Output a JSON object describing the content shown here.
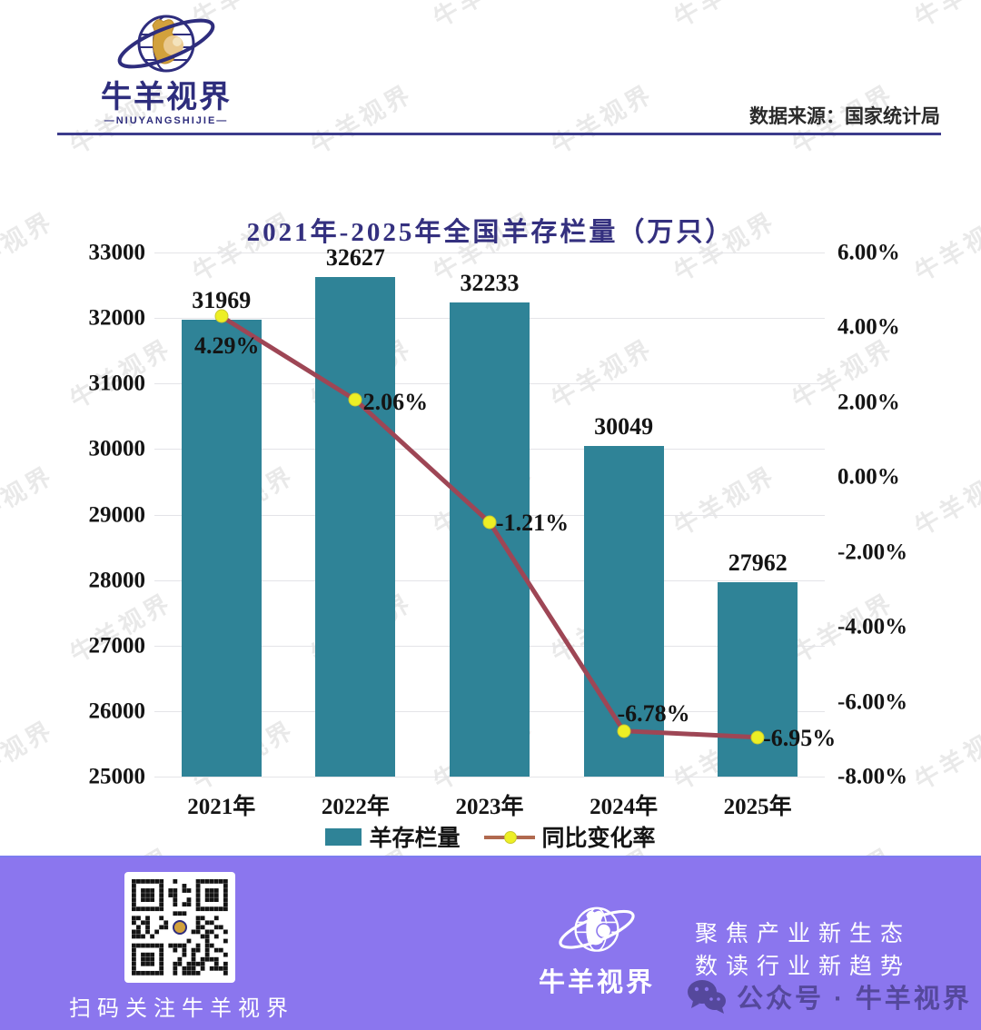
{
  "header": {
    "logo": {
      "name": "牛羊视界",
      "subtitle": "—NIUYANGSHIJIE—"
    },
    "source_label": "数据来源：国家统计局"
  },
  "chart_data": {
    "type": "bar",
    "title": "2021年-2025年全国羊存栏量（万只）",
    "categories": [
      "2021年",
      "2022年",
      "2023年",
      "2024年",
      "2025年"
    ],
    "series": [
      {
        "name": "羊存栏量",
        "type": "bar",
        "axis": "left",
        "values": [
          31969,
          32627,
          32233,
          30049,
          27962
        ],
        "value_labels": [
          "31969",
          "32627",
          "32233",
          "30049",
          "27962"
        ]
      },
      {
        "name": "同比变化率",
        "type": "line",
        "axis": "right",
        "values": [
          4.29,
          2.06,
          -1.21,
          -6.78,
          -6.95
        ],
        "value_labels": [
          "4.29%",
          "2.06%",
          "-1.21%",
          "-6.78%",
          "-6.95%"
        ]
      }
    ],
    "left_axis": {
      "min": 25000,
      "max": 33000,
      "step": 1000,
      "tick_labels": [
        "33000",
        "32000",
        "31000",
        "30000",
        "29000",
        "28000",
        "27000",
        "26000",
        "25000"
      ]
    },
    "right_axis": {
      "min": -8,
      "max": 6,
      "step": 2,
      "tick_labels": [
        "6.00%",
        "4.00%",
        "2.00%",
        "0.00%",
        "-2.00%",
        "-4.00%",
        "-6.00%",
        "-8.00%"
      ]
    },
    "grid": "horizontal",
    "legend_position": "bottom"
  },
  "footer": {
    "qr_caption": "扫码关注牛羊视界",
    "logo_name": "牛羊视界",
    "slogan_line1": "聚焦产业新生态",
    "slogan_line2": "数读行业新趋势",
    "account_label": "公众号 · 牛羊视界"
  },
  "watermark_text": "牛羊视界",
  "colors": {
    "bar": "#2f8397",
    "line": "#9e4655",
    "marker": "#edef25",
    "navy": "#2e2d7d",
    "footer_bg": "#8b76ee",
    "footer_dark_text": "#55489c"
  }
}
